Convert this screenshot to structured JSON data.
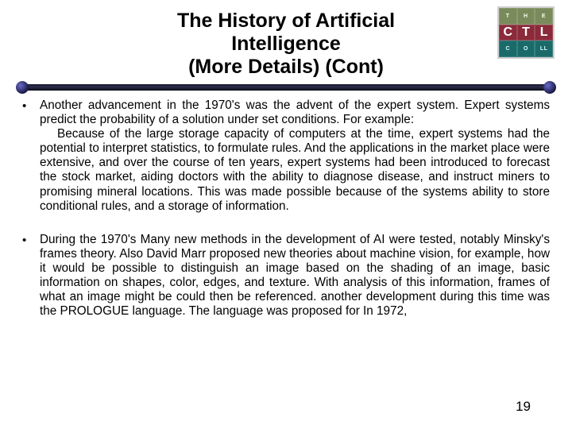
{
  "title": {
    "line1": "The History of Artificial",
    "line2": "Intelligence",
    "line3": "(More Details) (Cont)",
    "fontsize": 25,
    "color": "#000000"
  },
  "logo": {
    "row1": [
      "T",
      "H",
      "E"
    ],
    "row2": [
      "C",
      "T",
      "L"
    ],
    "row3": [
      "C",
      "O",
      "LL"
    ],
    "top_bg": "#7a8a5a",
    "mid_bg": "#8a2a3a",
    "bot_bg": "#1a6a6a"
  },
  "divider": {
    "bar_color_top": "#141428",
    "bar_color_bottom": "#0c0c18",
    "cap_color": "#1a1a44"
  },
  "bullets": [
    {
      "lead": "Another advancement in the 1970's was the advent of the expert system. Expert systems predict the probability of a solution under set conditions. For example:",
      "indent": "Because of the large storage capacity of computers at the time, expert systems had the potential to interpret statistics, to formulate rules. And the applications in the market place were extensive, and over the course of ten years, expert systems had been introduced to forecast the stock market, aiding doctors with the ability to diagnose disease, and instruct miners to promising mineral locations. This was made possible because of the systems ability to store conditional rules, and a storage of information."
    },
    {
      "lead": "During the 1970's Many new methods in the development of AI were tested, notably Minsky's frames theory. Also David Marr proposed new theories about machine vision, for example, how it would be possible to distinguish an image based on the shading of an image, basic information on shapes, color, edges, and texture. With analysis of this information, frames of what an image might be could then be referenced. another development during this time was the PROLOGUE language. The language was proposed for In 1972,",
      "indent": ""
    }
  ],
  "body_fontsize": 15.3,
  "page_number": "19",
  "background_color": "#ffffff"
}
